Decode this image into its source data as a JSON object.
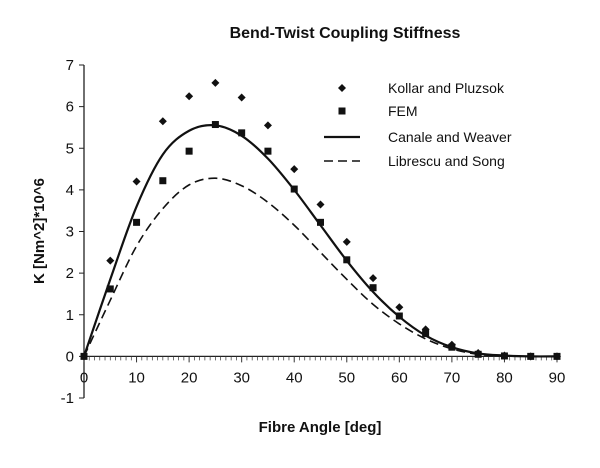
{
  "chart_data": {
    "type": "line",
    "title": "Bend-Twist Coupling Stiffness",
    "xlabel": "Fibre Angle [deg]",
    "ylabel": "K [Nm^2]*10^6",
    "xlim": [
      0,
      90
    ],
    "ylim": [
      -1,
      7
    ],
    "xticks": [
      "0",
      "10",
      "20",
      "30",
      "40",
      "50",
      "60",
      "70",
      "80",
      "90"
    ],
    "yticks": [
      "-1",
      "0",
      "1",
      "2",
      "3",
      "4",
      "5",
      "6",
      "7"
    ],
    "grid": false,
    "legend_position": "top-right",
    "series": [
      {
        "name": "Kollar and Pluzsok",
        "style": "diamond-markers",
        "x": [
          0,
          5,
          10,
          15,
          20,
          25,
          30,
          35,
          40,
          45,
          50,
          55,
          60,
          65,
          70,
          75,
          80,
          85,
          90
        ],
        "y": [
          0,
          2.3,
          4.2,
          5.65,
          6.25,
          6.57,
          6.22,
          5.55,
          4.5,
          3.65,
          2.75,
          1.88,
          1.18,
          0.65,
          0.28,
          0.08,
          0.02,
          0.0,
          0.0
        ]
      },
      {
        "name": "FEM",
        "style": "square-markers",
        "x": [
          0,
          5,
          10,
          15,
          20,
          25,
          30,
          35,
          40,
          45,
          50,
          55,
          60,
          65,
          70,
          75,
          80,
          85,
          90
        ],
        "y": [
          0,
          1.62,
          3.22,
          4.22,
          4.93,
          5.57,
          5.37,
          4.93,
          4.02,
          3.22,
          2.32,
          1.65,
          0.97,
          0.55,
          0.22,
          0.05,
          0.01,
          0.0,
          0.0
        ]
      },
      {
        "name": "Canale and Weaver",
        "style": "solid-line",
        "x": [
          0,
          5,
          10,
          15,
          20,
          25,
          30,
          35,
          40,
          45,
          50,
          55,
          60,
          65,
          70,
          75,
          80,
          85,
          90
        ],
        "y": [
          0,
          1.85,
          3.6,
          4.85,
          5.42,
          5.55,
          5.3,
          4.75,
          4.0,
          3.15,
          2.3,
          1.55,
          0.95,
          0.5,
          0.22,
          0.07,
          0.02,
          0.0,
          0.0
        ]
      },
      {
        "name": "Librescu and Song",
        "style": "dashed-line",
        "x": [
          0,
          5,
          10,
          15,
          20,
          25,
          30,
          35,
          40,
          45,
          50,
          55,
          60,
          65,
          70,
          75,
          80,
          85,
          90
        ],
        "y": [
          0,
          1.35,
          2.65,
          3.55,
          4.12,
          4.28,
          4.1,
          3.7,
          3.15,
          2.5,
          1.85,
          1.25,
          0.78,
          0.42,
          0.18,
          0.05,
          0.01,
          0.0,
          0.0
        ]
      }
    ]
  }
}
